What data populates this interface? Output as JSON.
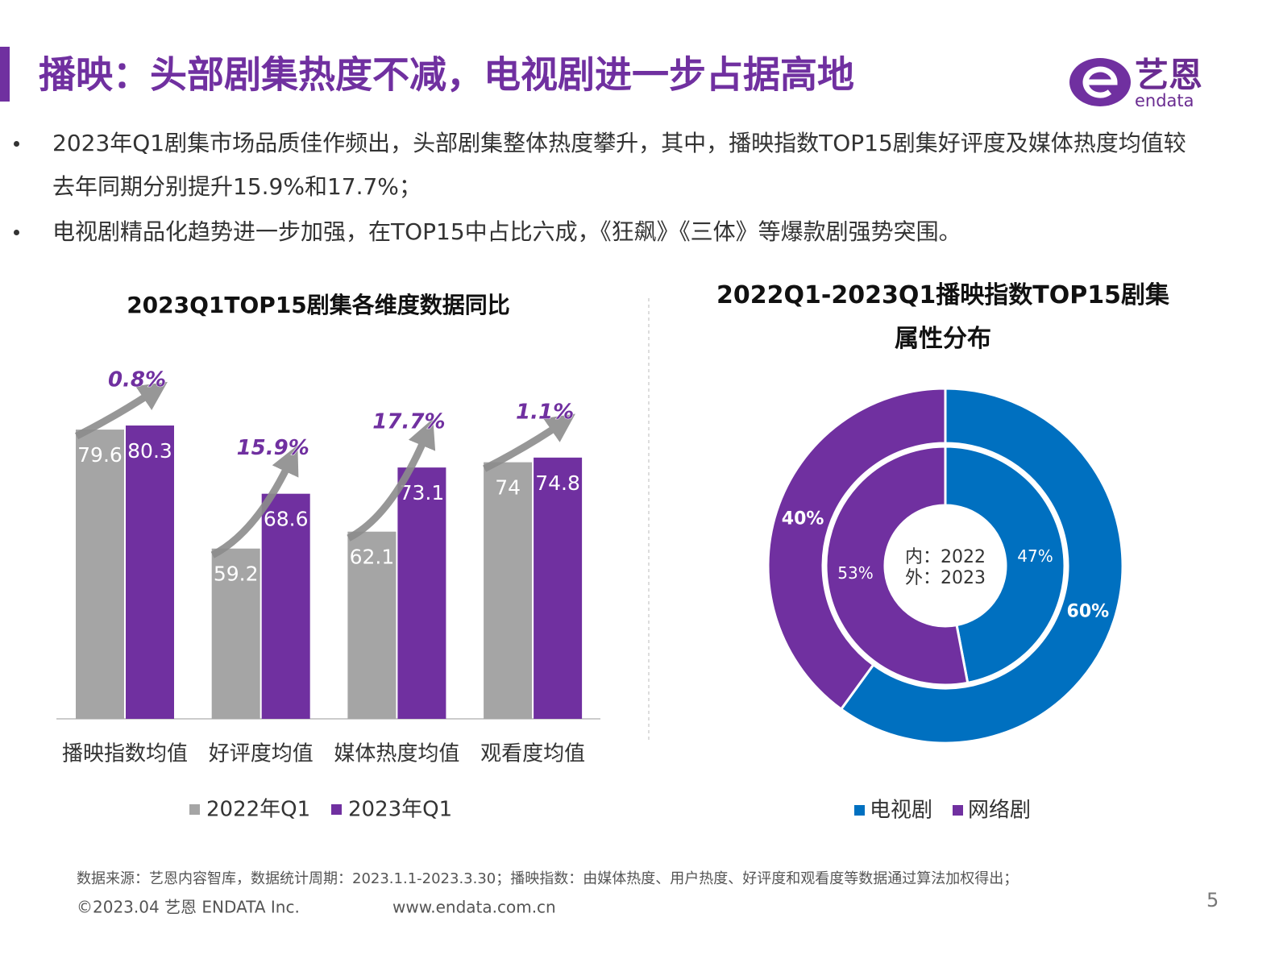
{
  "header": {
    "title": "播映：头部剧集热度不减，电视剧进一步占据高地"
  },
  "logo": {
    "name": "艺恩",
    "sub": "endata"
  },
  "bullets": [
    "2023年Q1剧集市场品质佳作频出，头部剧集整体热度攀升，其中，播映指数TOP15剧集好评度及媒体热度均值较去年同期分别提升15.9%和17.7%；",
    "电视剧精品化趋势进一步加强，在TOP15中占比六成，《狂飙》《三体》等爆款剧强势突围。"
  ],
  "chart_data": [
    {
      "type": "bar",
      "title": "2023Q1TOP15剧集各维度数据同比",
      "categories": [
        "播映指数均值",
        "好评度均值",
        "媒体热度均值",
        "观看度均值"
      ],
      "series": [
        {
          "name": "2022年Q1",
          "color": "#a5a5a5",
          "values": [
            79.6,
            59.2,
            62.1,
            74
          ]
        },
        {
          "name": "2023年Q1",
          "color": "#7030a0",
          "values": [
            80.3,
            68.6,
            73.1,
            74.8
          ]
        }
      ],
      "annotations": [
        "0.8%",
        "15.9%",
        "17.7%",
        "1.1%"
      ],
      "ylim": [
        30,
        85
      ]
    },
    {
      "type": "donut",
      "title": "2022Q1-2023Q1播映指数TOP15剧集属性分布",
      "center_labels": [
        "内：2022",
        "外：2023"
      ],
      "series": [
        {
          "name": "电视剧",
          "color": "#0070c0",
          "values": [
            47,
            60
          ],
          "value_labels": [
            "47%",
            "60%"
          ]
        },
        {
          "name": "网络剧",
          "color": "#7030a0",
          "values": [
            53,
            40
          ],
          "value_labels": [
            "53%",
            "40%"
          ]
        }
      ]
    }
  ],
  "footer": {
    "source": "数据来源：艺恩内容智库，数据统计周期：2023.1.1-2023.3.30；播映指数：由媒体热度、用户热度、好评度和观看度等数据通过算法加权得出；",
    "copyright": "©2023.04 艺恩 ENDATA Inc.",
    "website": "www.endata.com.cn",
    "page": "5"
  }
}
